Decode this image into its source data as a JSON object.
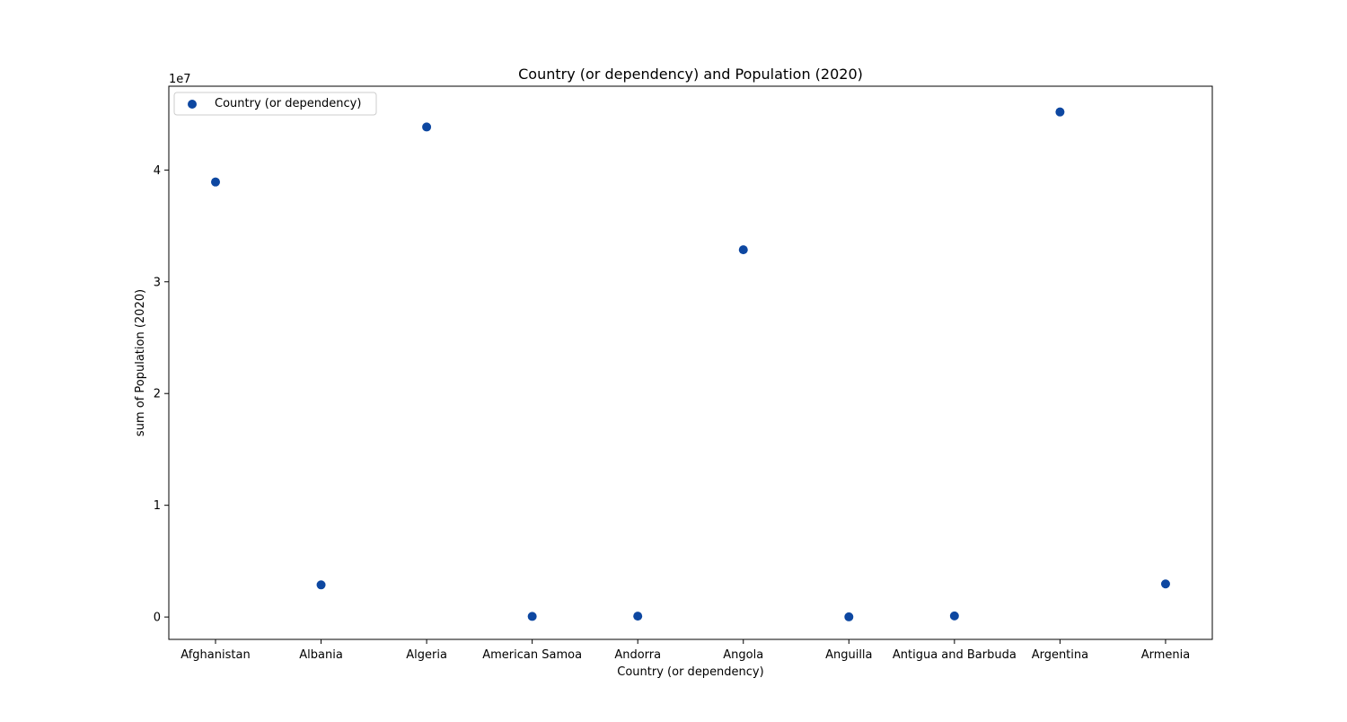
{
  "chart_data": {
    "type": "scatter",
    "title": "Country (or dependency) and Population (2020)",
    "xlabel": "Country (or dependency)",
    "ylabel": "sum of Population (2020)",
    "y_offset_label": "1e7",
    "categories": [
      "Afghanistan",
      "Albania",
      "Algeria",
      "American Samoa",
      "Andorra",
      "Angola",
      "Anguilla",
      "Antigua and Barbuda",
      "Argentina",
      "Armenia"
    ],
    "series": [
      {
        "name": "Country (or dependency)",
        "color": "#0d47a1",
        "values": [
          38928346,
          2877797,
          43851044,
          55191,
          77265,
          32866272,
          15003,
          97929,
          45195774,
          2963243
        ]
      }
    ],
    "ylim": [
      -2000000,
      47500000
    ],
    "y_ticks": [
      0,
      10000000,
      20000000,
      30000000,
      40000000
    ],
    "y_tick_labels": [
      "0",
      "1",
      "2",
      "3",
      "4"
    ],
    "legend_position": "top-left",
    "grid": false
  }
}
